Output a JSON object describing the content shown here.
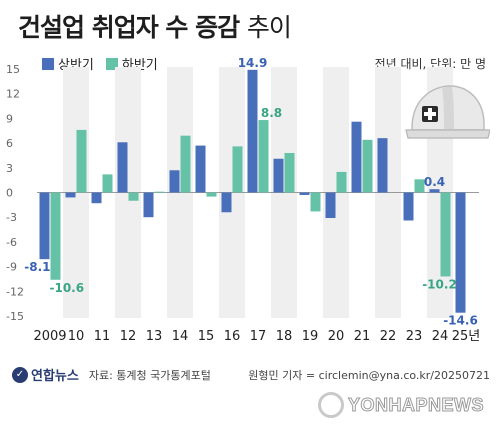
{
  "header": {
    "title_main": "건설업 취업자 수 증감",
    "title_sub": "추이",
    "unit_note": "전년 대비, 단위: 만 명"
  },
  "legend": {
    "first_half": "상반기",
    "second_half": "하반기"
  },
  "colors": {
    "first_half": "#4a6fba",
    "second_half": "#66c2a6",
    "first_half_label": "#3a62b4",
    "second_half_label": "#3aa585",
    "shade": "#efefef"
  },
  "chart_data": {
    "type": "bar",
    "title": "건설업 취업자 수 증감 추이",
    "categories": [
      "2009",
      "10",
      "11",
      "12",
      "13",
      "14",
      "15",
      "16",
      "17",
      "18",
      "19",
      "20",
      "21",
      "22",
      "23",
      "24",
      "25년"
    ],
    "series": [
      {
        "name": "상반기",
        "values": [
          -8.1,
          -0.6,
          -1.3,
          6.1,
          -3.0,
          2.7,
          5.7,
          -2.4,
          14.9,
          4.1,
          -0.3,
          -3.1,
          8.6,
          6.6,
          -3.4,
          0.4,
          -14.6
        ]
      },
      {
        "name": "하반기",
        "values": [
          -10.6,
          7.6,
          2.2,
          -1.0,
          0.1,
          6.9,
          -0.5,
          5.6,
          8.8,
          4.8,
          -2.3,
          2.5,
          6.4,
          null,
          1.6,
          -10.2,
          null
        ]
      }
    ],
    "data_labels": [
      {
        "text": "-8.1",
        "series": 0,
        "index": 0
      },
      {
        "text": "-10.6",
        "series": 1,
        "index": 0
      },
      {
        "text": "14.9",
        "series": 0,
        "index": 8
      },
      {
        "text": "8.8",
        "series": 1,
        "index": 8
      },
      {
        "text": "0.4",
        "series": 0,
        "index": 15
      },
      {
        "text": "-10.2",
        "series": 1,
        "index": 15
      },
      {
        "text": "-14.6",
        "series": 0,
        "index": 16
      }
    ],
    "ylim": [
      -15,
      15
    ],
    "yticks": [
      15,
      12,
      9,
      6,
      3,
      0,
      -3,
      -6,
      -9,
      -12,
      -15
    ],
    "ytick_labels": [
      "15",
      "12",
      "9",
      "6",
      "3",
      "0",
      "-3",
      "-6",
      "-9",
      "-12",
      "-15"
    ],
    "xlabel": "",
    "ylabel": "",
    "grid": false,
    "shaded_alternate_columns": true,
    "legend_position": "top-left"
  },
  "footer": {
    "logo_text": "연합뉴스",
    "source": "자료: 통계청 국가통계포털",
    "credit": "원형민 기자 = circlemin@yna.co.kr/20250721",
    "watermark": "YONHAPNEWS"
  }
}
